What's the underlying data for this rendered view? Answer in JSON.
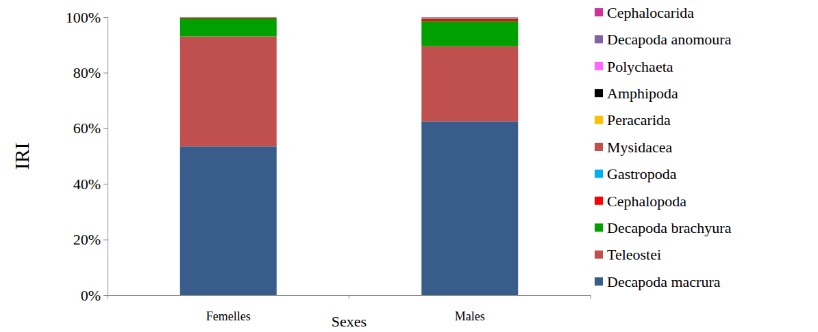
{
  "chart_data": {
    "type": "bar",
    "stacked": true,
    "grid": false,
    "legend": "right",
    "x_label": "Sexes",
    "y_label": "IRI",
    "categories": [
      "Femelles",
      "Males"
    ],
    "ylim": [
      0,
      100
    ],
    "yticks": [
      {
        "value": 0,
        "label": "0%"
      },
      {
        "value": 20,
        "label": "20%"
      },
      {
        "value": 40,
        "label": "40%"
      },
      {
        "value": 60,
        "label": "60%"
      },
      {
        "value": 80,
        "label": "80%"
      },
      {
        "value": 100,
        "label": "100%"
      }
    ],
    "series": [
      {
        "name": "Decapoda macrura",
        "color": "#385d8a",
        "values": [
          53.5,
          62.5
        ]
      },
      {
        "name": "Teleostei",
        "color": "#c0504d",
        "values": [
          39.5,
          27
        ]
      },
      {
        "name": "Decapoda brachyura",
        "color": "#00a000",
        "values": [
          6.5,
          9
        ]
      },
      {
        "name": "Cephalopoda",
        "color": "#ff0000",
        "values": [
          0.3,
          0.8
        ]
      },
      {
        "name": "Gastropoda",
        "color": "#00b0f0",
        "values": [
          0.05,
          0.2
        ]
      },
      {
        "name": "Mysidacea",
        "color": "#c0504d",
        "values": [
          0.05,
          0.1
        ]
      },
      {
        "name": "Peracarida",
        "color": "#ffc000",
        "values": [
          0.02,
          0.1
        ]
      },
      {
        "name": "Amphipoda",
        "color": "#000000",
        "values": [
          0.02,
          0.1
        ]
      },
      {
        "name": "Polychaeta",
        "color": "#ff66ff",
        "values": [
          0.02,
          0.05
        ]
      },
      {
        "name": "Decapoda anomoura",
        "color": "#8064a2",
        "values": [
          0.02,
          0.1
        ]
      },
      {
        "name": "Cephalocarida",
        "color": "#cc3399",
        "values": [
          0.02,
          0.05
        ]
      }
    ]
  }
}
